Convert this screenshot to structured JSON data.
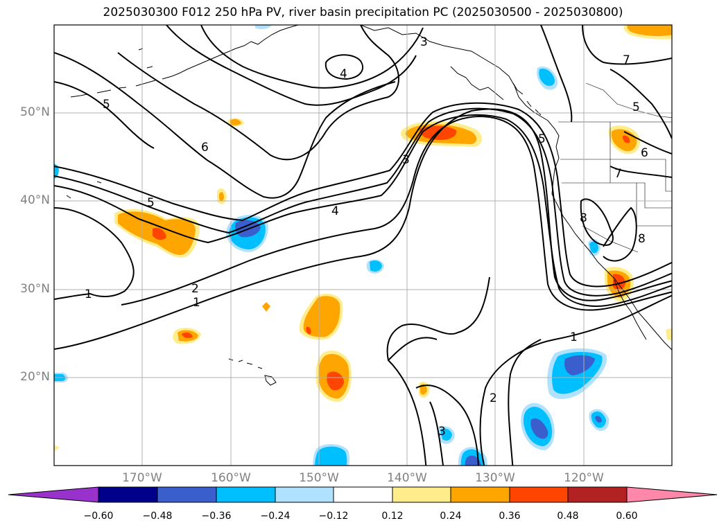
{
  "title": "2025030300 F012 250 hPa PV, river basin precipitation PC (2025030500 - 2025030800)",
  "lat_labels": [
    "50°N",
    "40°N",
    "30°N",
    "20°N"
  ],
  "lon_labels": [
    "170°W",
    "160°W",
    "150°W",
    "140°W",
    "130°W",
    "120°W"
  ],
  "pv_contour_labels": [
    "1",
    "2",
    "3",
    "4",
    "5",
    "6",
    "7",
    "8"
  ],
  "colorbar": {
    "ticks": [
      "−0.60",
      "−0.48",
      "−0.36",
      "−0.24",
      "−0.12",
      "0.12",
      "0.24",
      "0.36",
      "0.48",
      "0.60"
    ],
    "colors": [
      "#9932cc",
      "#00008b",
      "#3a5fcd",
      "#00bfff",
      "#b0e2ff",
      "#ffffff",
      "#ffec8b",
      "#ffa500",
      "#ff4500",
      "#b22222",
      "#ff88aa"
    ]
  },
  "colors": {
    "grid": "#b0b0b0",
    "contour": "#000000",
    "axis_label": "#808080"
  }
}
